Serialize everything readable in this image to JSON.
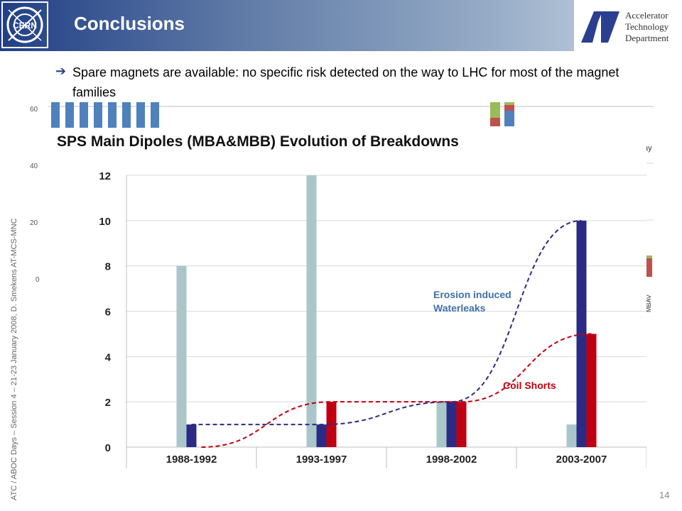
{
  "header": {
    "title": "Conclusions",
    "dept_lines": [
      "Accelerator",
      "Technology",
      "Department"
    ],
    "colors": {
      "banner_start": "#213f86",
      "banner_end": "#cfd9e6"
    }
  },
  "sidebar": {
    "text": "ATC / ABOC Days – Session 4 – 21-23 January 2008,  D. Smekens AT-MCS-MNC"
  },
  "bullet": {
    "icon": "right-arrow-icon",
    "text": "Spare magnets are available: no specific risk detected on the way to LHC for most  of the magnet families"
  },
  "background_chart": {
    "tick_labels": [
      "60",
      "40",
      "20",
      "0"
    ],
    "partial_labels": [
      "ay",
      "MBAV"
    ]
  },
  "chart_data": {
    "type": "bar",
    "title": "SPS Main Dipoles (MBA&MBB) Evolution of Breakdowns",
    "categories": [
      "1988-1992",
      "1993-1997",
      "1998-2002",
      "2003-2007"
    ],
    "series": [
      {
        "color": "#a9c6cb",
        "values": [
          8,
          12,
          2,
          1
        ]
      },
      {
        "color": "#2b2b86",
        "values": [
          1,
          1,
          2,
          10
        ]
      },
      {
        "color": "#c00010",
        "values": [
          0,
          2,
          2,
          5
        ]
      }
    ],
    "ylim": [
      0,
      12
    ],
    "yticks": [
      0,
      2,
      4,
      6,
      8,
      10,
      12
    ],
    "grid": true,
    "annotations": [
      "Erosion induced",
      "Waterleaks",
      "Coil Shorts"
    ],
    "trend_colors": {
      "waterleaks": "#2b2b86",
      "coil_shorts": "#c00010"
    }
  },
  "footer": {
    "page_number": "14"
  }
}
